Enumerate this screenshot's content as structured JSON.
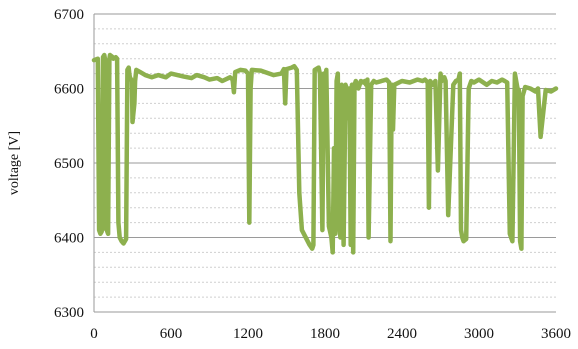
{
  "chart_data": {
    "type": "line",
    "title": "",
    "xlabel": "",
    "ylabel": "voltage [V]",
    "xlim": [
      0,
      3600
    ],
    "ylim": [
      6300,
      6700
    ],
    "x_ticks": [
      0,
      600,
      1200,
      1800,
      2400,
      3000,
      3600
    ],
    "y_ticks": [
      6300,
      6400,
      6500,
      6600,
      6700
    ],
    "x_tick_labels": [
      "0",
      "600",
      "1200",
      "1800",
      "2400",
      "3000",
      "3600"
    ],
    "y_tick_labels": [
      "6300",
      "6400",
      "6500",
      "6600",
      "6700"
    ],
    "grid": "horizontal",
    "legend": "none",
    "colors": {
      "series": "#8db04e",
      "major_grid": "#9a9a9a",
      "minor_grid": "#cfcfcf",
      "axis": "#9a9a9a"
    },
    "series": [
      {
        "x": [
          0,
          30,
          40,
          50,
          60,
          70,
          80,
          85,
          90,
          100,
          110,
          120,
          125,
          140,
          150,
          170,
          180,
          190,
          200,
          215,
          230,
          250,
          260,
          270,
          275,
          280,
          295,
          300,
          315,
          320,
          330,
          360,
          400,
          450,
          500,
          560,
          600,
          650,
          700,
          760,
          800,
          860,
          900,
          960,
          1000,
          1060,
          1080,
          1090,
          1100,
          1140,
          1180,
          1200,
          1210,
          1220,
          1230,
          1300,
          1400,
          1460,
          1480,
          1490,
          1500,
          1540,
          1560,
          1580,
          1600,
          1620,
          1680,
          1700,
          1710,
          1720,
          1750,
          1760,
          1780,
          1790,
          1800,
          1810,
          1830,
          1850,
          1860,
          1870,
          1880,
          1890,
          1900,
          1910,
          1920,
          1930,
          1945,
          1960,
          1970,
          1980,
          1990,
          2000,
          2010,
          2020,
          2030,
          2040,
          2060,
          2080,
          2100,
          2110,
          2120,
          2130,
          2140,
          2160,
          2180,
          2200,
          2240,
          2280,
          2300,
          2310,
          2320,
          2330,
          2340,
          2400,
          2460,
          2520,
          2560,
          2580,
          2600,
          2610,
          2620,
          2640,
          2660,
          2680,
          2700,
          2710,
          2720,
          2730,
          2740,
          2760,
          2800,
          2820,
          2840,
          2850,
          2860,
          2870,
          2880,
          2900,
          2920,
          2940,
          2960,
          3000,
          3060,
          3100,
          3140,
          3180,
          3200,
          3220,
          3240,
          3250,
          3260,
          3280,
          3300,
          3310,
          3320,
          3330,
          3340,
          3360,
          3400,
          3420,
          3440,
          3460,
          3480,
          3520,
          3560,
          3600
        ],
        "y": [
          6638,
          6640,
          6410,
          6405,
          6408,
          6642,
          6645,
          6640,
          6412,
          6410,
          6405,
          6640,
          6645,
          6643,
          6640,
          6642,
          6640,
          6420,
          6400,
          6395,
          6392,
          6398,
          6625,
          6628,
          6620,
          6615,
          6610,
          6555,
          6580,
          6610,
          6625,
          6622,
          6618,
          6615,
          6618,
          6615,
          6620,
          6618,
          6616,
          6614,
          6618,
          6615,
          6612,
          6614,
          6610,
          6615,
          6612,
          6595,
          6622,
          6625,
          6624,
          6620,
          6420,
          6600,
          6625,
          6624,
          6618,
          6620,
          6626,
          6580,
          6626,
          6628,
          6630,
          6625,
          6460,
          6410,
          6390,
          6385,
          6390,
          6625,
          6628,
          6620,
          6410,
          6620,
          6600,
          6625,
          6415,
          6400,
          6380,
          6520,
          6405,
          6610,
          6620,
          6420,
          6400,
          6605,
          6390,
          6605,
          6600,
          6560,
          6600,
          6390,
          6605,
          6380,
          6605,
          6610,
          6600,
          6610,
          6608,
          6610,
          6605,
          6612,
          6400,
          6605,
          6610,
          6608,
          6610,
          6612,
          6608,
          6395,
          6605,
          6545,
          6605,
          6610,
          6608,
          6612,
          6610,
          6612,
          6608,
          6440,
          6610,
          6605,
          6610,
          6490,
          6620,
          6610,
          6612,
          6615,
          6610,
          6430,
          6605,
          6610,
          6612,
          6620,
          6410,
          6400,
          6395,
          6398,
          6600,
          6610,
          6608,
          6612,
          6605,
          6610,
          6608,
          6612,
          6610,
          6608,
          6405,
          6400,
          6395,
          6620,
          6600,
          6598,
          6395,
          6385,
          6590,
          6602,
          6600,
          6598,
          6596,
          6600,
          6535,
          6598,
          6596,
          6600
        ]
      }
    ]
  }
}
